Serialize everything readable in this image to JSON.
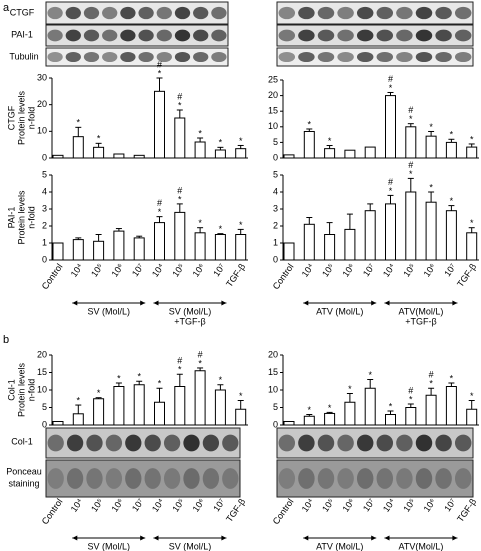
{
  "panels": [
    "a",
    "b"
  ],
  "blots": {
    "ctgf": "CTGF",
    "pai1": "PAI-1",
    "tubulin": "Tubulin",
    "col1": "Col-1",
    "ponceau": [
      "Ponceau",
      "staining"
    ]
  },
  "chart_data": [
    {
      "type": "bar",
      "ylabel": [
        "CTGF",
        "Protein levels",
        "n-fold"
      ],
      "ylim": [
        0,
        30
      ],
      "yticks": [
        0,
        10,
        20,
        30
      ],
      "values": [
        1,
        8,
        4,
        1.5,
        1,
        25,
        15,
        6,
        3,
        3.5
      ],
      "errors": [
        null,
        3.5,
        1.5,
        null,
        null,
        5,
        3,
        1.5,
        1,
        1.2
      ],
      "star": [
        null,
        "*",
        "*",
        null,
        null,
        "*",
        "*",
        "*",
        "*",
        "*"
      ],
      "hash": [
        null,
        null,
        null,
        null,
        null,
        "#",
        "#",
        null,
        null,
        null
      ]
    },
    {
      "type": "bar",
      "ylim": [
        0,
        25
      ],
      "yticks": [
        0,
        5,
        10,
        15,
        20,
        25
      ],
      "values": [
        1,
        8.5,
        3,
        2.5,
        3.5,
        20,
        10,
        7,
        5,
        3.5
      ],
      "errors": [
        null,
        0.8,
        1,
        null,
        null,
        1,
        1,
        1.5,
        1,
        1
      ],
      "star": [
        null,
        "*",
        "*",
        null,
        null,
        "*",
        "*",
        "*",
        "*",
        "*"
      ],
      "hash": [
        null,
        null,
        null,
        null,
        null,
        "#",
        "#",
        null,
        null,
        null
      ]
    },
    {
      "type": "bar",
      "ylabel": [
        "PAI-1",
        "Protein levels",
        "n-fold"
      ],
      "ylim": [
        0,
        5
      ],
      "yticks": [
        0,
        1,
        2,
        3,
        4,
        5
      ],
      "categories": [
        "Control",
        "10⁴",
        "10⁵",
        "10⁶",
        "10⁷",
        "10⁴",
        "10⁵",
        "10⁶",
        "10⁷",
        "TGF-β"
      ],
      "groups": [
        [
          "SV (Mol/L)"
        ],
        [
          "SV (Mol/L)",
          "+TGF-β"
        ]
      ],
      "values": [
        1,
        1.2,
        1.1,
        1.7,
        1.3,
        2.2,
        2.8,
        1.6,
        1.5,
        1.5
      ],
      "errors": [
        null,
        0.1,
        0.4,
        0.15,
        0.1,
        0.35,
        0.5,
        0.3,
        0.05,
        0.3
      ],
      "star": [
        null,
        null,
        null,
        null,
        null,
        "*",
        "*",
        "*",
        "*",
        "*"
      ],
      "hash": [
        null,
        null,
        null,
        null,
        null,
        "#",
        "#",
        null,
        null,
        null
      ]
    },
    {
      "type": "bar",
      "ylim": [
        0,
        5
      ],
      "yticks": [
        0,
        1,
        2,
        3,
        4,
        5
      ],
      "categories": [
        "Control",
        "10⁴",
        "10⁵",
        "10⁶",
        "10⁷",
        "10⁴",
        "10⁵",
        "10⁶",
        "10⁷",
        "TGF-β"
      ],
      "groups": [
        [
          "ATV (Mol/L)"
        ],
        [
          "ATV(Mol/L)",
          "+TGF-β"
        ]
      ],
      "values": [
        1,
        2.1,
        1.5,
        1.8,
        2.9,
        3.3,
        4,
        3.4,
        2.9,
        1.6
      ],
      "errors": [
        null,
        0.4,
        0.7,
        0.9,
        0.4,
        0.5,
        0.8,
        0.6,
        0.3,
        0.3
      ],
      "star": [
        null,
        null,
        null,
        null,
        null,
        "*",
        "*",
        "*",
        "*",
        "*"
      ],
      "hash": [
        null,
        null,
        null,
        null,
        null,
        "#",
        "#",
        null,
        null,
        null
      ]
    },
    {
      "type": "bar",
      "ylabel": [
        "Col-1",
        "Protein levels",
        "n-fold"
      ],
      "ylim": [
        0,
        20
      ],
      "yticks": [
        0,
        5,
        10,
        15,
        20
      ],
      "categories": [
        "Control",
        "10⁴",
        "10⁵",
        "10⁶",
        "10⁷",
        "10⁴",
        "10⁵",
        "10⁶",
        "10⁷",
        "TGF-β"
      ],
      "groups": [
        [
          "SV (Mol/L)"
        ],
        [
          "SV (Mol/L)",
          "+TGF-β"
        ]
      ],
      "values": [
        1,
        3.2,
        7.5,
        11,
        11.5,
        6.5,
        11,
        15.5,
        10,
        4.5
      ],
      "errors": [
        null,
        2.5,
        0.3,
        1,
        1,
        4,
        3.5,
        0.8,
        1.5,
        2.5
      ],
      "star": [
        null,
        "*",
        "*",
        "*",
        "*",
        "*",
        "*",
        "*",
        "*",
        "*"
      ],
      "hash": [
        null,
        null,
        null,
        null,
        null,
        null,
        "#",
        "#",
        null,
        null
      ]
    },
    {
      "type": "bar",
      "ylim": [
        0,
        20
      ],
      "yticks": [
        0,
        5,
        10,
        15,
        20
      ],
      "categories": [
        "Control",
        "10⁴",
        "10⁵",
        "10⁶",
        "10⁷",
        "10⁴",
        "10⁵",
        "10⁶",
        "10⁷",
        "TGF-β"
      ],
      "groups": [
        [
          "ATV (Mol/L)"
        ],
        [
          "ATV(Mol/L)",
          "+TGF-β"
        ]
      ],
      "values": [
        1,
        2.5,
        3.3,
        6.5,
        10.5,
        3,
        5,
        8.5,
        11,
        4.5
      ],
      "errors": [
        null,
        0.5,
        0.3,
        2.5,
        2.5,
        1,
        1,
        2,
        1,
        2.5
      ],
      "star": [
        null,
        "*",
        "*",
        "*",
        "*",
        "*",
        "*",
        "*",
        "*",
        "*"
      ],
      "hash": [
        null,
        null,
        null,
        null,
        null,
        null,
        "#",
        "#",
        null,
        null
      ]
    }
  ]
}
